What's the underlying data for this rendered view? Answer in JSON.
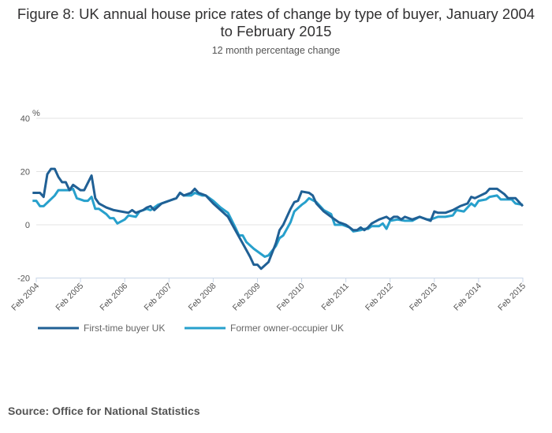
{
  "title": "Figure 8: UK annual house price rates of change by type of buyer, January 2004 to February 2015",
  "subtitle": "12 month percentage change",
  "source": "Source: Office for National Statistics",
  "chart_data": {
    "type": "line",
    "title": "Figure 8: UK annual house price rates of change by type of buyer, January 2004 to February 2015",
    "subtitle": "12 month percentage change",
    "ylabel": "%",
    "ylim": [
      -20,
      40
    ],
    "yticks": [
      40,
      20,
      0,
      -20
    ],
    "xticks": [
      "Feb 2004",
      "Feb 2005",
      "Feb 2006",
      "Feb 2007",
      "Feb 2008",
      "Feb 2009",
      "Feb 2010",
      "Feb 2011",
      "Feb 2012",
      "Feb 2013",
      "Feb 2014",
      "Feb 2015"
    ],
    "grid": true,
    "legend": "bottom-left",
    "series": [
      {
        "name": "First-time buyer UK",
        "color": "#206095",
        "points": [
          [
            "2004-01",
            12
          ],
          [
            "2004-03",
            12
          ],
          [
            "2004-04",
            10.5
          ],
          [
            "2004-05",
            19
          ],
          [
            "2004-06",
            21
          ],
          [
            "2004-07",
            21
          ],
          [
            "2004-08",
            18
          ],
          [
            "2004-09",
            16
          ],
          [
            "2004-10",
            16
          ],
          [
            "2004-11",
            13
          ],
          [
            "2004-12",
            15
          ],
          [
            "2005-02",
            13
          ],
          [
            "2005-03",
            13
          ],
          [
            "2005-05",
            18.5
          ],
          [
            "2005-06",
            10
          ],
          [
            "2005-07",
            8
          ],
          [
            "2005-09",
            6.5
          ],
          [
            "2005-11",
            5.5
          ],
          [
            "2006-01",
            5
          ],
          [
            "2006-03",
            4.5
          ],
          [
            "2006-04",
            5.5
          ],
          [
            "2006-05",
            4.5
          ],
          [
            "2006-07",
            5.5
          ],
          [
            "2006-08",
            6.5
          ],
          [
            "2006-09",
            7
          ],
          [
            "2006-10",
            5.5
          ],
          [
            "2006-12",
            8
          ],
          [
            "2007-02",
            9
          ],
          [
            "2007-04",
            10
          ],
          [
            "2007-05",
            12
          ],
          [
            "2007-06",
            11
          ],
          [
            "2007-08",
            12
          ],
          [
            "2007-09",
            13.5
          ],
          [
            "2007-10",
            12
          ],
          [
            "2007-12",
            11
          ],
          [
            "2008-02",
            8
          ],
          [
            "2008-04",
            5.5
          ],
          [
            "2008-06",
            3
          ],
          [
            "2008-08",
            -2
          ],
          [
            "2008-10",
            -7
          ],
          [
            "2008-12",
            -12
          ],
          [
            "2009-01",
            -15
          ],
          [
            "2009-02",
            -15
          ],
          [
            "2009-03",
            -16.5
          ],
          [
            "2009-05",
            -14
          ],
          [
            "2009-07",
            -7
          ],
          [
            "2009-08",
            -2
          ],
          [
            "2009-09",
            0
          ],
          [
            "2009-11",
            6
          ],
          [
            "2009-12",
            8.5
          ],
          [
            "2010-01",
            9
          ],
          [
            "2010-02",
            12.5
          ],
          [
            "2010-04",
            12
          ],
          [
            "2010-05",
            11
          ],
          [
            "2010-06",
            8
          ],
          [
            "2010-08",
            5
          ],
          [
            "2010-10",
            3
          ],
          [
            "2010-12",
            1
          ],
          [
            "2011-01",
            0.5
          ],
          [
            "2011-02",
            0
          ],
          [
            "2011-03",
            -1
          ],
          [
            "2011-04",
            -2
          ],
          [
            "2011-05",
            -2
          ],
          [
            "2011-06",
            -1
          ],
          [
            "2011-07",
            -2
          ],
          [
            "2011-08",
            -1
          ],
          [
            "2011-09",
            0.5
          ],
          [
            "2011-11",
            2
          ],
          [
            "2012-01",
            3
          ],
          [
            "2012-02",
            2
          ],
          [
            "2012-03",
            3
          ],
          [
            "2012-04",
            3
          ],
          [
            "2012-05",
            2
          ],
          [
            "2012-06",
            3
          ],
          [
            "2012-08",
            2
          ],
          [
            "2012-10",
            3
          ],
          [
            "2012-12",
            2
          ],
          [
            "2013-01",
            1.5
          ],
          [
            "2013-02",
            5
          ],
          [
            "2013-03",
            4.5
          ],
          [
            "2013-05",
            4.5
          ],
          [
            "2013-07",
            5.5
          ],
          [
            "2013-09",
            7
          ],
          [
            "2013-11",
            8
          ],
          [
            "2013-12",
            10.5
          ],
          [
            "2014-01",
            10
          ],
          [
            "2014-04",
            12
          ],
          [
            "2014-05",
            13.5
          ],
          [
            "2014-07",
            13.5
          ],
          [
            "2014-08",
            12.5
          ],
          [
            "2014-09",
            11.5
          ],
          [
            "2014-10",
            10
          ],
          [
            "2014-12",
            10
          ],
          [
            "2015-02",
            7
          ]
        ]
      },
      {
        "name": "Former owner-occupier UK",
        "color": "#27a0cc",
        "points": [
          [
            "2004-01",
            9
          ],
          [
            "2004-02",
            9
          ],
          [
            "2004-03",
            7
          ],
          [
            "2004-04",
            7
          ],
          [
            "2004-07",
            11
          ],
          [
            "2004-08",
            13
          ],
          [
            "2004-09",
            13
          ],
          [
            "2004-11",
            13
          ],
          [
            "2004-12",
            13.5
          ],
          [
            "2005-01",
            10
          ],
          [
            "2005-03",
            9
          ],
          [
            "2005-04",
            9
          ],
          [
            "2005-05",
            10.5
          ],
          [
            "2005-06",
            6
          ],
          [
            "2005-07",
            6
          ],
          [
            "2005-09",
            4
          ],
          [
            "2005-10",
            2.5
          ],
          [
            "2005-11",
            2.5
          ],
          [
            "2005-12",
            0.5
          ],
          [
            "2006-02",
            2
          ],
          [
            "2006-03",
            3.5
          ],
          [
            "2006-05",
            3
          ],
          [
            "2006-06",
            5
          ],
          [
            "2006-08",
            6
          ],
          [
            "2006-09",
            5.5
          ],
          [
            "2006-11",
            7.5
          ],
          [
            "2007-02",
            9
          ],
          [
            "2007-04",
            10
          ],
          [
            "2007-05",
            12
          ],
          [
            "2007-06",
            11
          ],
          [
            "2007-08",
            11
          ],
          [
            "2007-09",
            12
          ],
          [
            "2007-11",
            11
          ],
          [
            "2007-12",
            11
          ],
          [
            "2008-02",
            9
          ],
          [
            "2008-04",
            6.5
          ],
          [
            "2008-06",
            4.5
          ],
          [
            "2008-08",
            -1
          ],
          [
            "2008-09",
            -4
          ],
          [
            "2008-10",
            -4
          ],
          [
            "2008-11",
            -6.5
          ],
          [
            "2009-01",
            -9
          ],
          [
            "2009-03",
            -11
          ],
          [
            "2009-04",
            -12
          ],
          [
            "2009-05",
            -11.5
          ],
          [
            "2009-07",
            -8
          ],
          [
            "2009-08",
            -5
          ],
          [
            "2009-09",
            -4
          ],
          [
            "2009-11",
            1
          ],
          [
            "2009-12",
            5
          ],
          [
            "2010-02",
            7.5
          ],
          [
            "2010-03",
            8.5
          ],
          [
            "2010-04",
            10
          ],
          [
            "2010-06",
            8.5
          ],
          [
            "2010-08",
            5.5
          ],
          [
            "2010-10",
            4
          ],
          [
            "2010-11",
            0
          ],
          [
            "2011-01",
            0
          ],
          [
            "2011-03",
            -1
          ],
          [
            "2011-04",
            -2.5
          ],
          [
            "2011-06",
            -2
          ],
          [
            "2011-07",
            -1.5
          ],
          [
            "2011-08",
            -1.5
          ],
          [
            "2011-09",
            -0.5
          ],
          [
            "2011-11",
            -0.5
          ],
          [
            "2011-12",
            0.5
          ],
          [
            "2012-01",
            -1.5
          ],
          [
            "2012-02",
            1.5
          ],
          [
            "2012-04",
            2
          ],
          [
            "2012-06",
            1.5
          ],
          [
            "2012-08",
            1.5
          ],
          [
            "2012-10",
            3
          ],
          [
            "2012-12",
            2
          ],
          [
            "2013-01",
            2
          ],
          [
            "2013-03",
            3
          ],
          [
            "2013-05",
            3
          ],
          [
            "2013-07",
            3.5
          ],
          [
            "2013-08",
            5.5
          ],
          [
            "2013-10",
            5
          ],
          [
            "2013-12",
            8
          ],
          [
            "2014-01",
            7
          ],
          [
            "2014-02",
            9
          ],
          [
            "2014-04",
            9.5
          ],
          [
            "2014-05",
            10.5
          ],
          [
            "2014-07",
            11
          ],
          [
            "2014-08",
            9.5
          ],
          [
            "2014-09",
            9.5
          ],
          [
            "2014-11",
            9.5
          ],
          [
            "2014-12",
            8
          ],
          [
            "2015-02",
            7.5
          ]
        ]
      }
    ]
  }
}
